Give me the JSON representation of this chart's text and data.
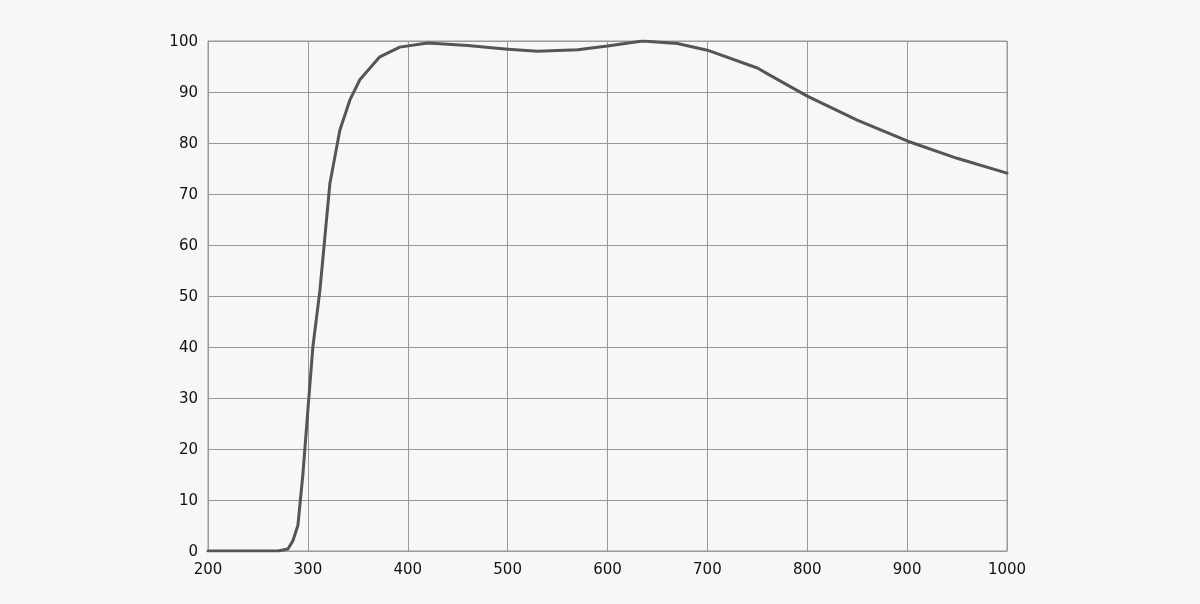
{
  "chart_data": {
    "type": "line",
    "x": [
      200,
      250,
      270,
      280,
      285,
      290,
      295,
      300,
      305,
      312,
      322,
      332,
      342,
      352,
      372,
      392,
      420,
      460,
      500,
      530,
      570,
      600,
      635,
      670,
      700,
      750,
      800,
      850,
      900,
      950,
      1000
    ],
    "series": [
      {
        "color": "#555555",
        "values": [
          0,
          0,
          0,
          0.4,
          2,
          5,
          15,
          27.6,
          40,
          51,
          72,
          82.5,
          88.4,
          92.4,
          96.9,
          98.8,
          99.6,
          99.1,
          98.4,
          98,
          98.3,
          99,
          100,
          99.5,
          98.2,
          94.7,
          89.2,
          84.5,
          80.4,
          77,
          74.1
        ]
      }
    ],
    "xlim": [
      200,
      1000
    ],
    "xticks": [
      200,
      300,
      400,
      500,
      600,
      700,
      800,
      900,
      1000
    ],
    "ylim": [
      0,
      100
    ],
    "yticks": [
      0,
      10,
      20,
      30,
      40,
      50,
      60,
      70,
      80,
      90,
      100
    ],
    "grid": true,
    "marker": "none",
    "line_style": "solid"
  }
}
